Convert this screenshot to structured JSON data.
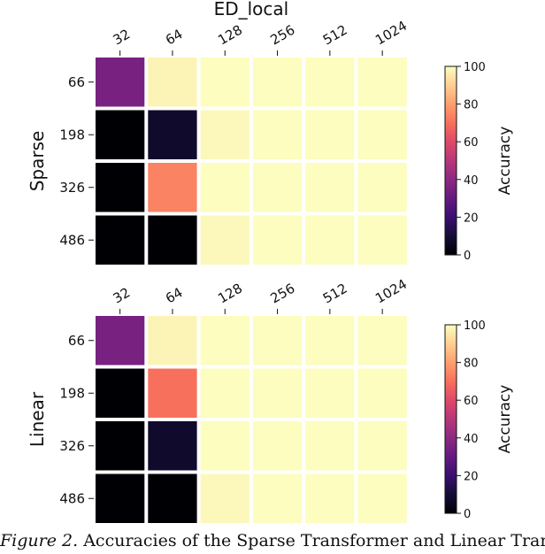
{
  "chart_data": [
    {
      "type": "heatmap",
      "title": "ED_local",
      "ylabel": "Sparse",
      "x_categories": [
        "32",
        "64",
        "128",
        "256",
        "512",
        "1024"
      ],
      "y_categories": [
        "66",
        "198",
        "326",
        "486"
      ],
      "values": [
        [
          35,
          98,
          100,
          100,
          100,
          100
        ],
        [
          0,
          8,
          99,
          100,
          100,
          100
        ],
        [
          0,
          74,
          100,
          100,
          100,
          100
        ],
        [
          0,
          0,
          99,
          100,
          100,
          100
        ]
      ],
      "colorbar": {
        "label": "Accuracy",
        "range": [
          0,
          100
        ],
        "ticks": [
          "0",
          "20",
          "40",
          "60",
          "80",
          "100"
        ]
      },
      "colormap": "magma"
    },
    {
      "type": "heatmap",
      "title": "",
      "ylabel": "Linear",
      "x_categories": [
        "32",
        "64",
        "128",
        "256",
        "512",
        "1024"
      ],
      "y_categories": [
        "66",
        "198",
        "326",
        "486"
      ],
      "values": [
        [
          35,
          98,
          100,
          100,
          100,
          100
        ],
        [
          0,
          70,
          100,
          100,
          100,
          100
        ],
        [
          0,
          8,
          100,
          100,
          100,
          100
        ],
        [
          0,
          0,
          99,
          100,
          100,
          100
        ]
      ],
      "colorbar": {
        "label": "Accuracy",
        "range": [
          0,
          100
        ],
        "ticks": [
          "0",
          "20",
          "40",
          "60",
          "80",
          "100"
        ]
      },
      "colormap": "magma"
    }
  ],
  "caption": {
    "figure_label": "Figure 2.",
    "text": "Accuracies of the Sparse Transformer and Linear Tran"
  }
}
